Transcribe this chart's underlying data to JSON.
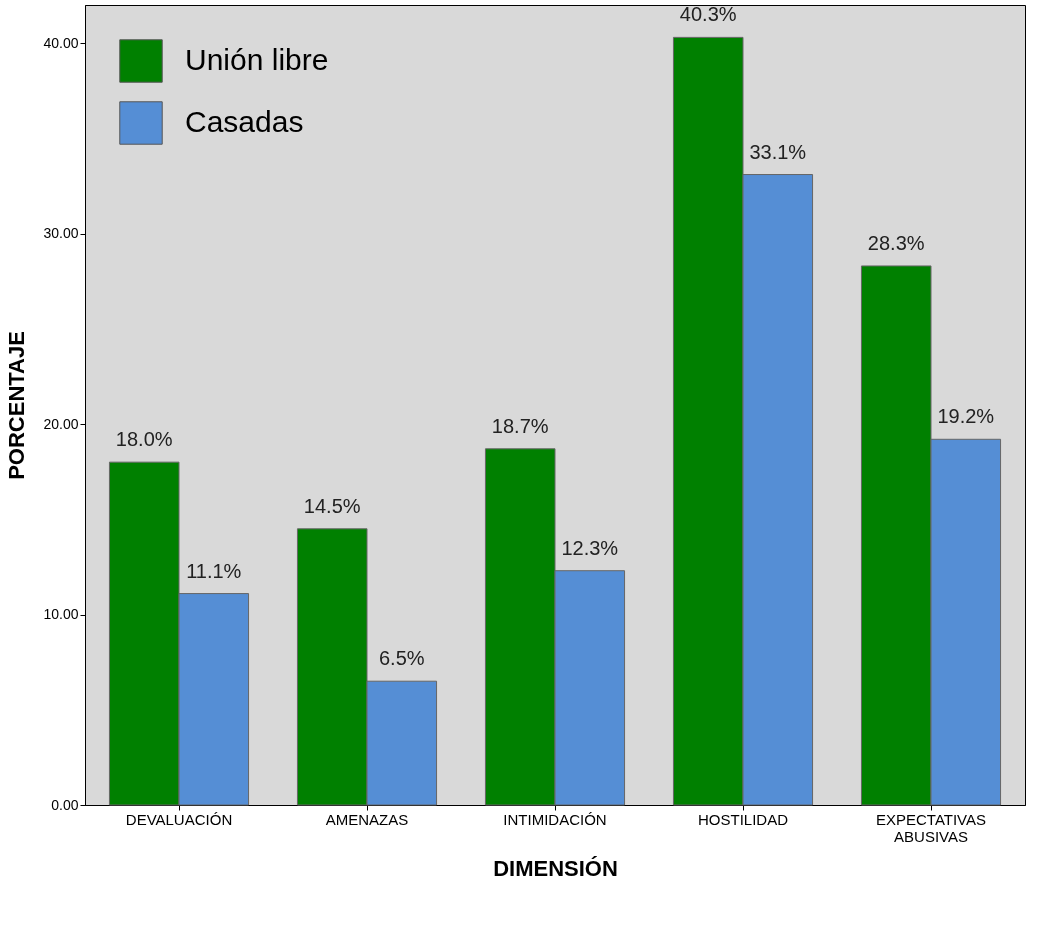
{
  "chart_data": {
    "type": "bar",
    "xlabel": "DIMENSIÓN",
    "ylabel": "PORCENTAJE",
    "categories": [
      "DEVALUACIÓN",
      "AMENAZAS",
      "INTIMIDACIÓN",
      "HOSTILIDAD",
      "EXPECTATIVAS ABUSIVAS"
    ],
    "series": [
      {
        "name": "Unión libre",
        "color": "#008000",
        "values": [
          18.0,
          14.5,
          18.7,
          40.3,
          28.3
        ],
        "value_labels": [
          "18.0%",
          "14.5%",
          "18.7%",
          "40.3%",
          "28.3%"
        ]
      },
      {
        "name": "Casadas",
        "color": "#558ed5",
        "values": [
          11.1,
          6.5,
          12.3,
          33.1,
          19.2
        ],
        "value_labels": [
          "11.1%",
          "6.5%",
          "12.3%",
          "33.1%",
          "19.2%"
        ]
      }
    ],
    "ylim": [
      0,
      42
    ],
    "yticks": [
      {
        "value": 0,
        "label": "0.00"
      },
      {
        "value": 10,
        "label": "10.00"
      },
      {
        "value": 20,
        "label": "20.00"
      },
      {
        "value": 30,
        "label": "30.00"
      },
      {
        "value": 40,
        "label": "40.00"
      }
    ],
    "grid": false,
    "legend": "top left"
  }
}
